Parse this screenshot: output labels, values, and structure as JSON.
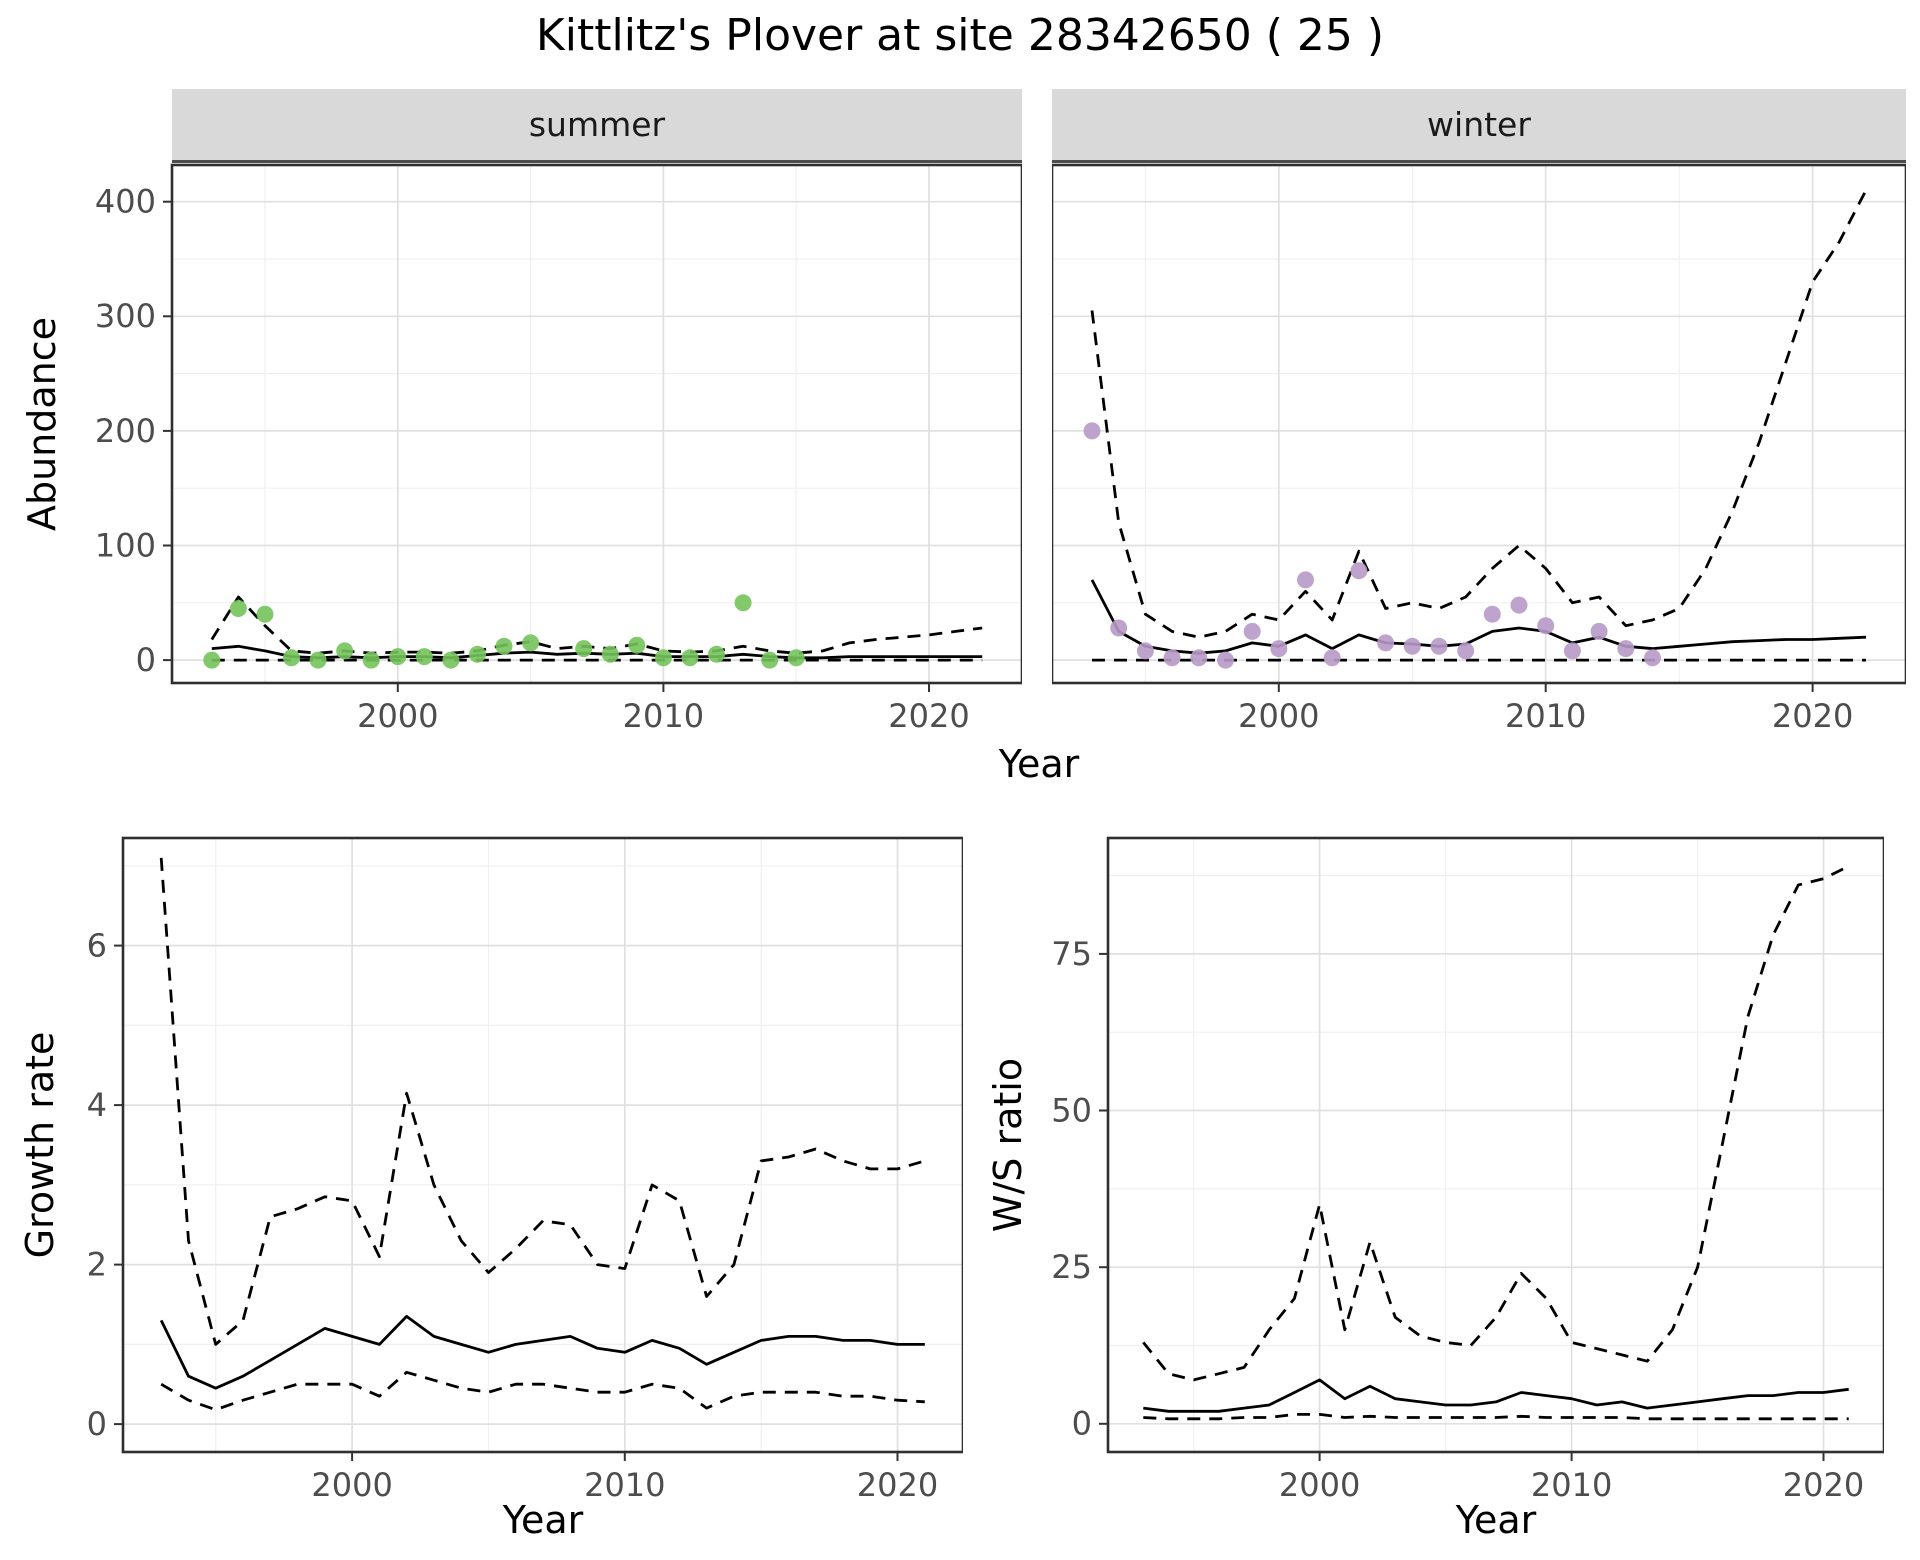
{
  "title": "Kittlitz's Plover at site 28342650 ( 25 )",
  "facets": {
    "summer": "summer",
    "winter": "winter"
  },
  "axis_labels": {
    "abundance": "Abundance",
    "year": "Year",
    "growth": "Growth rate",
    "ws": "W/S ratio"
  },
  "colors": {
    "summer_point": "#74C35C",
    "winter_point": "#B79AC8",
    "line": "#000000",
    "strip_bg": "#D9D9D9",
    "grid_major": "#E0E0E0",
    "grid_minor": "#F0F0F0",
    "panel_border": "#2f2f2f",
    "axis_text": "#4d4d4d"
  },
  "chart_data": [
    {
      "id": "abundance_summer",
      "type": "line",
      "facet": "summer",
      "title": "Abundance - summer",
      "xlabel": "Year",
      "ylabel": "Abundance",
      "xlim": [
        1991.5,
        2023.5
      ],
      "ylim": [
        -20,
        432
      ],
      "xticks": [
        2000,
        2010,
        2020
      ],
      "yticks": [
        0,
        100,
        200,
        300,
        400
      ],
      "xminor": [
        1995,
        2005,
        2015
      ],
      "yminor": [
        50,
        150,
        250,
        350
      ],
      "show_y_ticklabels": true,
      "series": [
        {
          "name": "lower-95ci",
          "style": "dashed",
          "x": [
            1993,
            1994,
            1995,
            1996,
            1997,
            1998,
            1999,
            2000,
            2001,
            2002,
            2003,
            2004,
            2005,
            2006,
            2007,
            2008,
            2009,
            2010,
            2011,
            2012,
            2013,
            2014,
            2015,
            2016,
            2017,
            2018,
            2019,
            2020,
            2021,
            2022
          ],
          "y": [
            0,
            0,
            0,
            0,
            0,
            0,
            0,
            0,
            0,
            0,
            0,
            0,
            0,
            0,
            0,
            0,
            0,
            0,
            0,
            0,
            0,
            0,
            0,
            0,
            0,
            0,
            0,
            0,
            0,
            0
          ]
        },
        {
          "name": "median",
          "style": "solid",
          "x": [
            1993,
            1994,
            1995,
            1996,
            1997,
            1998,
            1999,
            2000,
            2001,
            2002,
            2003,
            2004,
            2005,
            2006,
            2007,
            2008,
            2009,
            2010,
            2011,
            2012,
            2013,
            2014,
            2015,
            2016,
            2017,
            2018,
            2019,
            2020,
            2021,
            2022
          ],
          "y": [
            10,
            12,
            8,
            3,
            2,
            3,
            2,
            3,
            3,
            2,
            4,
            6,
            7,
            5,
            6,
            5,
            6,
            3,
            3,
            3,
            5,
            3,
            2,
            2,
            3,
            3,
            3,
            3,
            3,
            3
          ]
        },
        {
          "name": "upper-95ci",
          "style": "dashed",
          "x": [
            1993,
            1994,
            1995,
            1996,
            1997,
            1998,
            1999,
            2000,
            2001,
            2002,
            2003,
            2004,
            2005,
            2006,
            2007,
            2008,
            2009,
            2010,
            2011,
            2012,
            2013,
            2014,
            2015,
            2016,
            2017,
            2018,
            2019,
            2020,
            2021,
            2022
          ],
          "y": [
            18,
            55,
            30,
            8,
            6,
            8,
            6,
            7,
            7,
            6,
            8,
            13,
            16,
            10,
            12,
            10,
            14,
            8,
            7,
            8,
            12,
            8,
            6,
            8,
            15,
            18,
            20,
            22,
            25,
            28
          ]
        },
        {
          "name": "observed-counts",
          "style": "points",
          "color": "#74C35C",
          "x": [
            1993,
            1994,
            1995,
            1996,
            1997,
            1998,
            1999,
            2000,
            2001,
            2002,
            2003,
            2004,
            2005,
            2007,
            2008,
            2009,
            2010,
            2011,
            2012,
            2013,
            2014,
            2015
          ],
          "y": [
            0,
            45,
            40,
            2,
            0,
            8,
            0,
            3,
            3,
            0,
            5,
            12,
            15,
            10,
            5,
            13,
            2,
            2,
            5,
            50,
            0,
            2
          ]
        }
      ]
    },
    {
      "id": "abundance_winter",
      "type": "line",
      "facet": "winter",
      "title": "Abundance - winter",
      "xlabel": "Year",
      "ylabel": "Abundance",
      "xlim": [
        1991.5,
        2023.5
      ],
      "ylim": [
        -20,
        432
      ],
      "xticks": [
        2000,
        2010,
        2020
      ],
      "yticks": [
        0,
        100,
        200,
        300,
        400
      ],
      "xminor": [
        1995,
        2005,
        2015
      ],
      "yminor": [
        50,
        150,
        250,
        350
      ],
      "show_y_ticklabels": false,
      "series": [
        {
          "name": "lower-95ci",
          "style": "dashed",
          "x": [
            1993,
            1994,
            1995,
            1996,
            1997,
            1998,
            1999,
            2000,
            2001,
            2002,
            2003,
            2004,
            2005,
            2006,
            2007,
            2008,
            2009,
            2010,
            2011,
            2012,
            2013,
            2014,
            2015,
            2016,
            2017,
            2018,
            2019,
            2020,
            2021,
            2022
          ],
          "y": [
            0,
            0,
            0,
            0,
            0,
            0,
            0,
            0,
            0,
            0,
            0,
            0,
            0,
            0,
            0,
            0,
            0,
            0,
            0,
            0,
            0,
            0,
            0,
            0,
            0,
            0,
            0,
            0,
            0,
            0
          ]
        },
        {
          "name": "median",
          "style": "solid",
          "x": [
            1993,
            1994,
            1995,
            1996,
            1997,
            1998,
            1999,
            2000,
            2001,
            2002,
            2003,
            2004,
            2005,
            2006,
            2007,
            2008,
            2009,
            2010,
            2011,
            2012,
            2013,
            2014,
            2015,
            2016,
            2017,
            2018,
            2019,
            2020,
            2021,
            2022
          ],
          "y": [
            70,
            25,
            12,
            8,
            6,
            8,
            15,
            12,
            22,
            10,
            22,
            15,
            14,
            12,
            14,
            25,
            28,
            25,
            15,
            20,
            12,
            10,
            12,
            14,
            16,
            17,
            18,
            18,
            19,
            20
          ]
        },
        {
          "name": "upper-95ci",
          "style": "dashed",
          "x": [
            1993,
            1994,
            1995,
            1996,
            1997,
            1998,
            1999,
            2000,
            2001,
            2002,
            2003,
            2004,
            2005,
            2006,
            2007,
            2008,
            2009,
            2010,
            2011,
            2012,
            2013,
            2014,
            2015,
            2016,
            2017,
            2018,
            2019,
            2020,
            2021,
            2022
          ],
          "y": [
            305,
            120,
            40,
            25,
            20,
            25,
            40,
            35,
            60,
            35,
            95,
            45,
            50,
            45,
            55,
            80,
            100,
            80,
            50,
            55,
            30,
            35,
            45,
            80,
            130,
            190,
            260,
            330,
            365,
            410
          ]
        },
        {
          "name": "observed-counts",
          "style": "points",
          "color": "#B79AC8",
          "x": [
            1993,
            1994,
            1995,
            1996,
            1997,
            1998,
            1999,
            2000,
            2001,
            2002,
            2003,
            2004,
            2005,
            2006,
            2007,
            2008,
            2009,
            2010,
            2011,
            2012,
            2013,
            2014
          ],
          "y": [
            200,
            28,
            8,
            2,
            2,
            0,
            25,
            10,
            70,
            2,
            78,
            15,
            12,
            12,
            8,
            40,
            48,
            30,
            8,
            25,
            10,
            2
          ]
        }
      ]
    },
    {
      "id": "growth_rate",
      "type": "line",
      "title": "Growth rate",
      "xlabel": "Year",
      "ylabel": "Growth rate",
      "xlim": [
        1991.6,
        2022.4
      ],
      "ylim": [
        -0.35,
        7.35
      ],
      "xticks": [
        2000,
        2010,
        2020
      ],
      "yticks": [
        0,
        2,
        4,
        6
      ],
      "xminor": [
        1995,
        2005,
        2015
      ],
      "yminor": [
        1,
        3,
        5,
        7
      ],
      "show_y_ticklabels": true,
      "series": [
        {
          "name": "lower-95ci",
          "style": "dashed",
          "x": [
            1993,
            1994,
            1995,
            1996,
            1997,
            1998,
            1999,
            2000,
            2001,
            2002,
            2003,
            2004,
            2005,
            2006,
            2007,
            2008,
            2009,
            2010,
            2011,
            2012,
            2013,
            2014,
            2015,
            2016,
            2017,
            2018,
            2019,
            2020,
            2021
          ],
          "y": [
            0.5,
            0.3,
            0.18,
            0.3,
            0.4,
            0.5,
            0.5,
            0.5,
            0.35,
            0.65,
            0.55,
            0.45,
            0.4,
            0.5,
            0.5,
            0.45,
            0.4,
            0.4,
            0.5,
            0.45,
            0.2,
            0.35,
            0.4,
            0.4,
            0.4,
            0.35,
            0.35,
            0.3,
            0.28
          ]
        },
        {
          "name": "median",
          "style": "solid",
          "x": [
            1993,
            1994,
            1995,
            1996,
            1997,
            1998,
            1999,
            2000,
            2001,
            2002,
            2003,
            2004,
            2005,
            2006,
            2007,
            2008,
            2009,
            2010,
            2011,
            2012,
            2013,
            2014,
            2015,
            2016,
            2017,
            2018,
            2019,
            2020,
            2021
          ],
          "y": [
            1.3,
            0.6,
            0.45,
            0.6,
            0.8,
            1.0,
            1.2,
            1.1,
            1.0,
            1.35,
            1.1,
            1.0,
            0.9,
            1.0,
            1.05,
            1.1,
            0.95,
            0.9,
            1.05,
            0.95,
            0.75,
            0.9,
            1.05,
            1.1,
            1.1,
            1.05,
            1.05,
            1.0,
            1.0
          ]
        },
        {
          "name": "upper-95ci",
          "style": "dashed",
          "x": [
            1993,
            1994,
            1995,
            1996,
            1997,
            1998,
            1999,
            2000,
            2001,
            2002,
            2003,
            2004,
            2005,
            2006,
            2007,
            2008,
            2009,
            2010,
            2011,
            2012,
            2013,
            2014,
            2015,
            2016,
            2017,
            2018,
            2019,
            2020,
            2021
          ],
          "y": [
            7.1,
            2.3,
            1.0,
            1.3,
            2.6,
            2.7,
            2.85,
            2.8,
            2.1,
            4.15,
            3.0,
            2.3,
            1.9,
            2.2,
            2.55,
            2.5,
            2.0,
            1.95,
            3.0,
            2.8,
            1.6,
            2.0,
            3.3,
            3.35,
            3.45,
            3.3,
            3.2,
            3.2,
            3.3
          ]
        }
      ]
    },
    {
      "id": "ws_ratio",
      "type": "line",
      "title": "W/S ratio",
      "xlabel": "Year",
      "ylabel": "W/S ratio",
      "xlim": [
        1991.6,
        2022.4
      ],
      "ylim": [
        -4.5,
        93.5
      ],
      "xticks": [
        2000,
        2010,
        2020
      ],
      "yticks": [
        0,
        25,
        50,
        75
      ],
      "xminor": [
        1995,
        2005,
        2015
      ],
      "yminor": [
        12.5,
        37.5,
        62.5,
        87.5
      ],
      "show_y_ticklabels": true,
      "series": [
        {
          "name": "lower-95ci",
          "style": "dashed",
          "x": [
            1993,
            1994,
            1995,
            1996,
            1997,
            1998,
            1999,
            2000,
            2001,
            2002,
            2003,
            2004,
            2005,
            2006,
            2007,
            2008,
            2009,
            2010,
            2011,
            2012,
            2013,
            2014,
            2015,
            2016,
            2017,
            2018,
            2019,
            2020,
            2021
          ],
          "y": [
            1,
            0.8,
            0.8,
            0.8,
            1,
            1,
            1.5,
            1.5,
            1,
            1.2,
            1,
            1,
            1,
            1,
            1,
            1.2,
            1,
            1,
            1,
            1,
            0.8,
            0.8,
            0.8,
            0.8,
            0.8,
            0.8,
            0.8,
            0.8,
            0.8
          ]
        },
        {
          "name": "median",
          "style": "solid",
          "x": [
            1993,
            1994,
            1995,
            1996,
            1997,
            1998,
            1999,
            2000,
            2001,
            2002,
            2003,
            2004,
            2005,
            2006,
            2007,
            2008,
            2009,
            2010,
            2011,
            2012,
            2013,
            2014,
            2015,
            2016,
            2017,
            2018,
            2019,
            2020,
            2021
          ],
          "y": [
            2.5,
            2,
            2,
            2,
            2.5,
            3,
            5,
            7,
            4,
            6,
            4,
            3.5,
            3,
            3,
            3.5,
            5,
            4.5,
            4,
            3,
            3.5,
            2.5,
            3,
            3.5,
            4,
            4.5,
            4.5,
            5,
            5,
            5.5
          ]
        },
        {
          "name": "upper-95ci",
          "style": "dashed",
          "x": [
            1993,
            1994,
            1995,
            1996,
            1997,
            1998,
            1999,
            2000,
            2001,
            2002,
            2003,
            2004,
            2005,
            2006,
            2007,
            2008,
            2009,
            2010,
            2011,
            2012,
            2013,
            2014,
            2015,
            2016,
            2017,
            2018,
            2019,
            2020,
            2021
          ],
          "y": [
            13,
            8,
            7,
            8,
            9,
            15,
            20,
            35,
            15,
            29,
            17,
            14,
            13,
            12.5,
            17,
            24,
            20,
            13,
            12,
            11,
            10,
            15,
            25,
            45,
            65,
            78,
            86,
            87,
            89
          ]
        }
      ]
    }
  ]
}
